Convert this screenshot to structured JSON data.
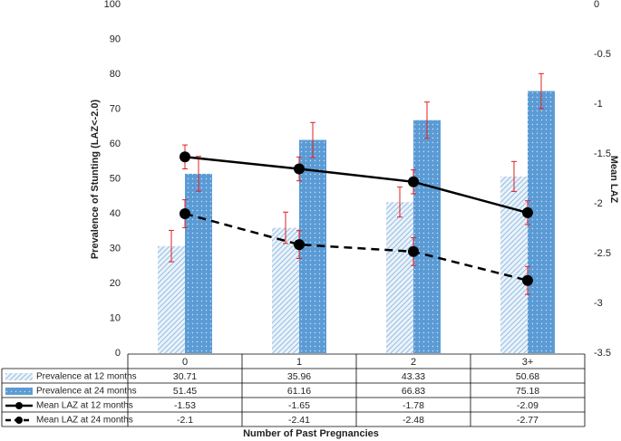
{
  "chart_data": {
    "type": "bar-line",
    "xlabel": "Number of Past Pregnancies",
    "ylabel": "Prevalence of Stunting (LAZ<-2.0)",
    "y2label": "Mean LAZ",
    "categories": [
      "0",
      "1",
      "2",
      "3+"
    ],
    "ylim": [
      0,
      100
    ],
    "yticks": [
      0,
      10,
      20,
      30,
      40,
      50,
      60,
      70,
      80,
      90,
      100
    ],
    "y2lim": [
      -3.5,
      0
    ],
    "y2ticks": [
      -3.5,
      -3,
      -2.5,
      -2,
      -1.5,
      -1,
      -0.5,
      0
    ],
    "grid": false,
    "error_color": "#e02020",
    "series": [
      {
        "name": "Prevalence at 12 months",
        "kind": "bar",
        "pattern": "hatch",
        "color": "#9dc3e6",
        "values": [
          30.71,
          35.96,
          43.33,
          50.68
        ],
        "errors": [
          4.5,
          4.5,
          4.3,
          4.3
        ]
      },
      {
        "name": "Prevalence at 24 months",
        "kind": "bar",
        "pattern": "dots",
        "color": "#5b9bd5",
        "values": [
          51.45,
          61.16,
          66.83,
          75.18
        ],
        "errors": [
          5,
          5,
          5.2,
          5
        ]
      },
      {
        "name": "Mean LAZ at 12 months",
        "kind": "line",
        "axis": "y2",
        "dash": false,
        "color": "#000000",
        "values": [
          -1.53,
          -1.65,
          -1.78,
          -2.09
        ],
        "errors": [
          0.12,
          0.12,
          0.12,
          0.12
        ]
      },
      {
        "name": "Mean LAZ at 24 months",
        "kind": "line",
        "axis": "y2",
        "dash": true,
        "color": "#000000",
        "values": [
          -2.1,
          -2.41,
          -2.48,
          -2.77
        ],
        "errors": [
          0.14,
          0.14,
          0.14,
          0.14
        ]
      }
    ]
  }
}
